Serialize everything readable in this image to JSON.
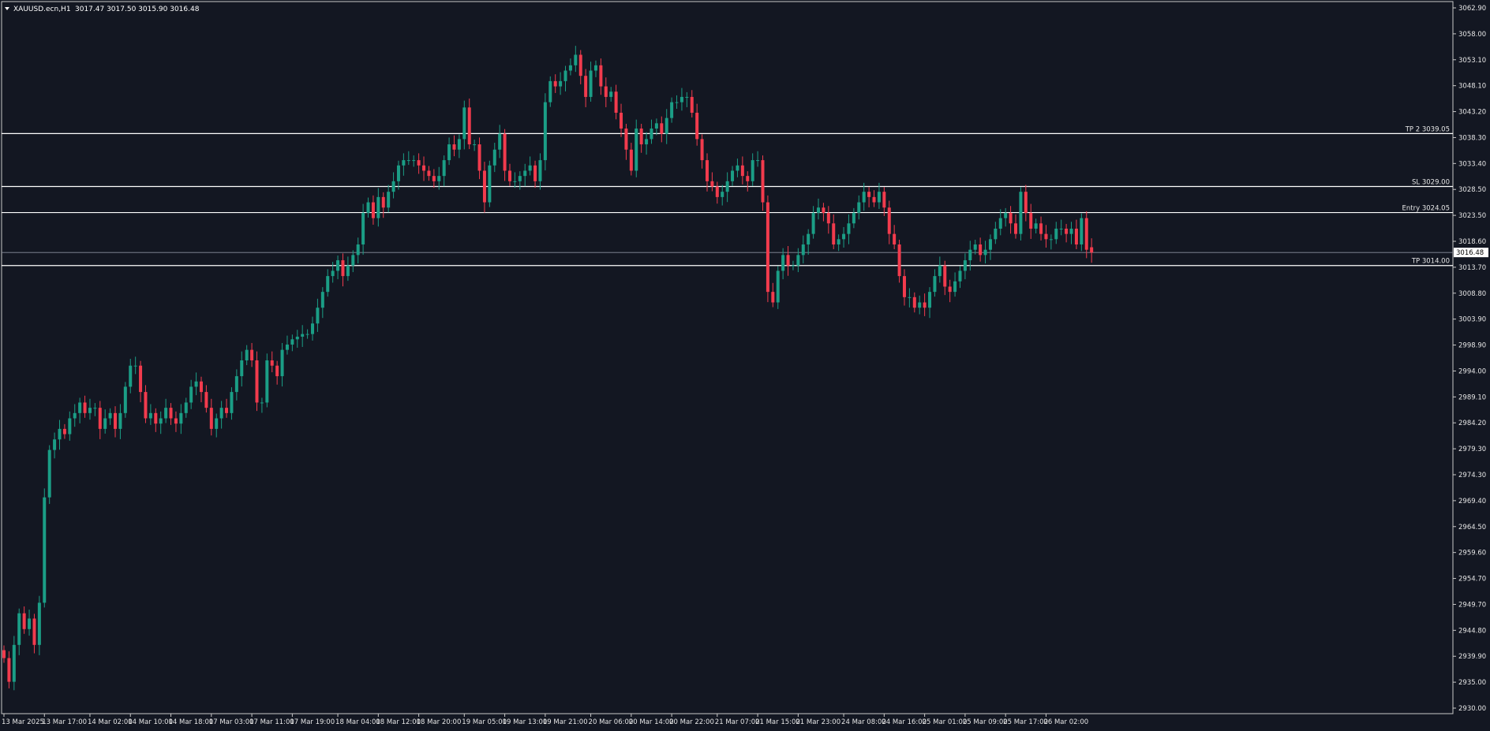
{
  "header": {
    "symbol_label": "XAUUSD.ecn,H1",
    "ohlc_label": "3017.47 3017.50 3015.90 3016.48"
  },
  "colors": {
    "background": "#131722",
    "border": "#c8c8c8",
    "axis_text": "#e6e6e6",
    "bull": "#1b9e86",
    "bear": "#f23b4d",
    "level_line": "#ffffff",
    "price_label_bg": "#ffffff",
    "price_label_text": "#000000"
  },
  "chart_data": {
    "type": "candlestick",
    "symbol": "XAUUSD.ecn",
    "timeframe": "H1",
    "ylim": [
      2930.0,
      3062.9
    ],
    "y_ticks": [
      "3062.90",
      "3058.00",
      "3053.10",
      "3048.10",
      "3043.20",
      "3038.30",
      "3033.40",
      "3028.50",
      "3023.50",
      "3018.60",
      "3013.70",
      "3008.80",
      "3003.90",
      "2998.90",
      "2994.00",
      "2989.10",
      "2984.20",
      "2979.30",
      "2974.30",
      "2969.40",
      "2964.50",
      "2959.60",
      "2954.70",
      "2949.70",
      "2944.80",
      "2939.90",
      "2935.00",
      "2930.00"
    ],
    "x_ticks": [
      {
        "label": "13 Mar 2025",
        "i": 0
      },
      {
        "label": "13 Mar 17:00",
        "i": 8
      },
      {
        "label": "14 Mar 02:00",
        "i": 17
      },
      {
        "label": "14 Mar 10:00",
        "i": 25
      },
      {
        "label": "14 Mar 18:00",
        "i": 33
      },
      {
        "label": "17 Mar 03:00",
        "i": 41
      },
      {
        "label": "17 Mar 11:00",
        "i": 49
      },
      {
        "label": "17 Mar 19:00",
        "i": 57
      },
      {
        "label": "18 Mar 04:00",
        "i": 66
      },
      {
        "label": "18 Mar 12:00",
        "i": 74
      },
      {
        "label": "18 Mar 20:00",
        "i": 82
      },
      {
        "label": "19 Mar 05:00",
        "i": 91
      },
      {
        "label": "19 Mar 13:00",
        "i": 99
      },
      {
        "label": "19 Mar 21:00",
        "i": 107
      },
      {
        "label": "20 Mar 06:00",
        "i": 116
      },
      {
        "label": "20 Mar 14:00",
        "i": 124
      },
      {
        "label": "20 Mar 22:00",
        "i": 132
      },
      {
        "label": "21 Mar 07:00",
        "i": 141
      },
      {
        "label": "21 Mar 15:00",
        "i": 149
      },
      {
        "label": "21 Mar 23:00",
        "i": 157
      },
      {
        "label": "24 Mar 08:00",
        "i": 166
      },
      {
        "label": "24 Mar 16:00",
        "i": 174
      },
      {
        "label": "25 Mar 01:00",
        "i": 182
      },
      {
        "label": "25 Mar 09:00",
        "i": 190
      },
      {
        "label": "25 Mar 17:00",
        "i": 198
      },
      {
        "label": "26 Mar 02:00",
        "i": 206
      }
    ],
    "levels": [
      {
        "label": "TP 2 3039.05",
        "price": 3039.05
      },
      {
        "label": "SL 3029.00",
        "price": 3029.0
      },
      {
        "label": "Entry 3024.05",
        "price": 3024.05
      },
      {
        "label": "TP 3014.00",
        "price": 3014.0
      }
    ],
    "current_price": {
      "label": "3016.48",
      "price": 3016.48
    },
    "closes": [
      2939.5,
      2935,
      2942,
      2948,
      2945,
      2947,
      2942,
      2950,
      2970,
      2979,
      2981,
      2983,
      2982,
      2985,
      2986,
      2988,
      2986,
      2987,
      2987,
      2983,
      2985,
      2986,
      2983,
      2986,
      2991,
      2995,
      2995,
      2990,
      2985,
      2986,
      2984,
      2985,
      2987,
      2985,
      2984,
      2986,
      2988,
      2991,
      2992,
      2990,
      2987,
      2983,
      2985,
      2987,
      2986,
      2990,
      2993,
      2996,
      2998,
      2996,
      2988,
      2988,
      2996,
      2995,
      2993,
      2998,
      2999,
      3000,
      3000.5,
      3001,
      3001,
      3003,
      3006,
      3009,
      3012,
      3013,
      3015,
      3012,
      3014,
      3016,
      3018,
      3024,
      3026,
      3023,
      3027,
      3025,
      3028,
      3030,
      3033,
      3034,
      3034,
      3034,
      3033,
      3032,
      3031,
      3030,
      3031,
      3034,
      3037,
      3036,
      3038,
      3044,
      3037,
      3037,
      3032,
      3026,
      3033,
      3036,
      3039,
      3032,
      3030,
      3030,
      3031,
      3032,
      3033,
      3030,
      3034,
      3045,
      3049,
      3048,
      3049,
      3051,
      3052,
      3054,
      3050,
      3046,
      3051,
      3052,
      3048,
      3046,
      3047,
      3043,
      3040,
      3036,
      3032,
      3040,
      3037,
      3038,
      3040,
      3041,
      3039,
      3042,
      3045,
      3045,
      3046,
      3046,
      3043,
      3038,
      3034,
      3030,
      3029,
      3027,
      3028,
      3030,
      3032,
      3033,
      3031,
      3030,
      3034,
      3034,
      3026,
      3009,
      3007,
      3013,
      3016,
      3014,
      3014,
      3016,
      3018,
      3020,
      3024,
      3025,
      3024,
      3022,
      3018,
      3019,
      3020,
      3022,
      3024,
      3026,
      3028,
      3027,
      3026,
      3028,
      3025,
      3020,
      3018,
      3012,
      3008,
      3008,
      3006,
      3007,
      3006,
      3009,
      3012,
      3014,
      3010,
      3009,
      3011,
      3013,
      3015,
      3017,
      3018,
      3016,
      3017,
      3019,
      3021,
      3023,
      3024,
      3022,
      3020,
      3028,
      3024,
      3021,
      3022,
      3020,
      3019,
      3019,
      3021,
      3021,
      3020,
      3021,
      3018,
      3023,
      3017,
      3016.48
    ],
    "opens": [
      2941,
      2939.5,
      2935,
      2942,
      2948,
      2945,
      2947,
      2942,
      2950,
      2970,
      2979,
      2981,
      2983,
      2982,
      2985,
      2986,
      2988,
      2986,
      2987,
      2987,
      2983,
      2985,
      2986,
      2983,
      2986,
      2991,
      2995,
      2995,
      2990,
      2985,
      2986,
      2984,
      2985,
      2987,
      2985,
      2984,
      2986,
      2988,
      2991,
      2992,
      2990,
      2987,
      2983,
      2985,
      2987,
      2986,
      2990,
      2993,
      2996,
      2998,
      2996,
      2988,
      2988,
      2996,
      2995,
      2993,
      2998,
      2999,
      3000,
      3000.5,
      3001,
      3001,
      3003,
      3006,
      3009,
      3012,
      3013,
      3015,
      3012,
      3014,
      3016,
      3018,
      3024,
      3026,
      3023,
      3027,
      3025,
      3028,
      3030,
      3033,
      3034,
      3034,
      3034,
      3033,
      3032,
      3031,
      3030,
      3031,
      3034,
      3037,
      3036,
      3038,
      3044,
      3037,
      3037,
      3032,
      3026,
      3033,
      3036,
      3039,
      3032,
      3030,
      3030,
      3031,
      3032,
      3033,
      3030,
      3034,
      3045,
      3049,
      3048,
      3049,
      3051,
      3052,
      3054,
      3050,
      3046,
      3051,
      3052,
      3048,
      3046,
      3047,
      3043,
      3040,
      3036,
      3032,
      3040,
      3037,
      3038,
      3040,
      3041,
      3039,
      3042,
      3045,
      3045,
      3046,
      3046,
      3043,
      3038,
      3034,
      3030,
      3029,
      3027,
      3028,
      3030,
      3032,
      3033,
      3031,
      3030,
      3034,
      3034,
      3026,
      3009,
      3007,
      3013,
      3016,
      3014,
      3014,
      3016,
      3018,
      3020,
      3024,
      3025,
      3024,
      3022,
      3018,
      3019,
      3020,
      3022,
      3024,
      3026,
      3028,
      3027,
      3026,
      3028,
      3025,
      3020,
      3018,
      3012,
      3008,
      3008,
      3006,
      3007,
      3006,
      3009,
      3012,
      3014,
      3010,
      3009,
      3011,
      3013,
      3015,
      3017,
      3018,
      3016,
      3017,
      3019,
      3021,
      3023,
      3024,
      3022,
      3020,
      3028,
      3024,
      3021,
      3022,
      3020,
      3019,
      3019,
      3021,
      3021,
      3020,
      3021,
      3018,
      3023,
      3017.47
    ]
  }
}
